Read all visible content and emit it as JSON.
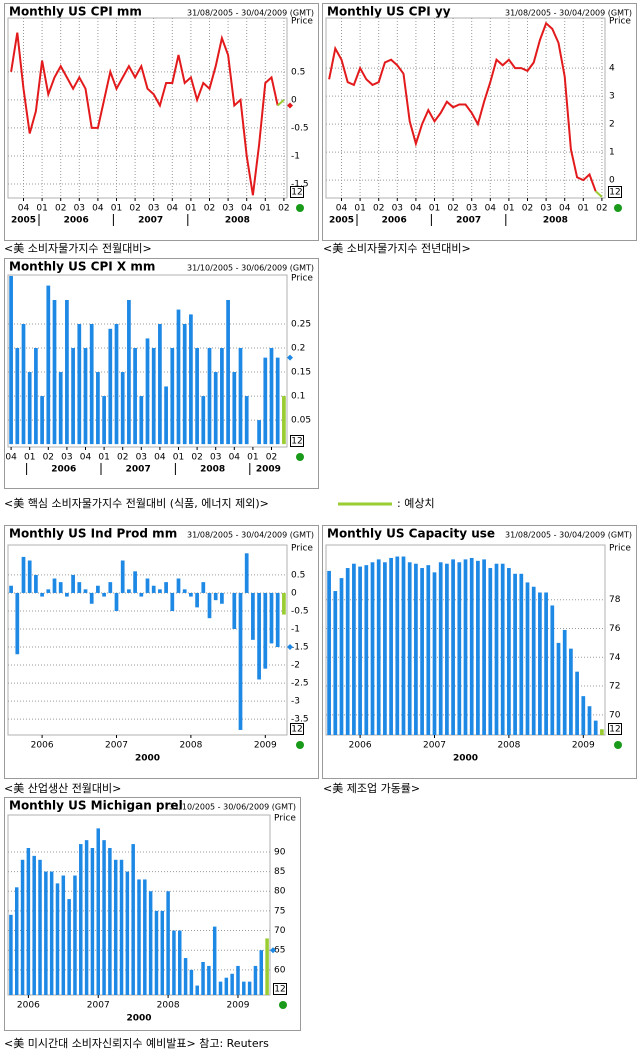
{
  "chart_data": [
    {
      "type": "line",
      "title": "Monthly US CPI mm",
      "date_range": "31/08/2005 - 30/04/2009 (GMT)",
      "caption": "<美 소비자물가지수 전월대비>",
      "axis_title": "Price",
      "box_label": "12",
      "categories": [
        null,
        null,
        "04",
        null,
        null,
        "01",
        null,
        null,
        "02",
        null,
        null,
        "03",
        null,
        null,
        "04",
        null,
        null,
        "01",
        null,
        null,
        "02",
        null,
        null,
        "03",
        null,
        null,
        "04",
        null,
        null,
        "01",
        null,
        null,
        "02",
        null,
        null,
        "03",
        null,
        null,
        "04",
        null,
        null,
        "01",
        null,
        null,
        "02"
      ],
      "years": [
        "2005",
        null,
        null,
        null,
        null,
        "2006",
        null,
        null,
        null,
        null,
        null,
        null,
        null,
        null,
        null,
        null,
        null,
        "2007",
        null,
        null,
        null,
        null,
        null,
        null,
        null,
        null,
        null,
        null,
        null,
        "2008",
        null,
        null,
        null,
        null,
        null,
        null,
        null,
        null,
        null,
        null,
        null,
        null,
        null,
        null,
        null
      ],
      "values": [
        0.5,
        1.2,
        0.2,
        -0.6,
        -0.2,
        0.7,
        0.1,
        0.4,
        0.6,
        0.4,
        0.2,
        0.4,
        0.2,
        -0.5,
        -0.5,
        0,
        0.5,
        0.2,
        0.4,
        0.6,
        0.4,
        0.6,
        0.2,
        0.1,
        -0.1,
        0.3,
        0.3,
        0.8,
        0.3,
        0.4,
        0,
        0.3,
        0.2,
        0.6,
        1.1,
        0.8,
        -0.1,
        0,
        -1.0,
        -1.7,
        -0.8,
        0.3,
        0.4,
        -0.1,
        null
      ],
      "forecast": 0,
      "color": "#e31a1c",
      "forecast_color": "#9acd32",
      "marker": true,
      "ylim": [
        -1.75,
        1.46
      ],
      "yticks": [
        0.5,
        0,
        -0.5,
        -1,
        -1.5
      ],
      "grid": true,
      "xgrid": true
    },
    {
      "type": "line",
      "title": "Monthly US CPI yy",
      "date_range": "31/08/2005 - 30/04/2009 (GMT)",
      "caption": "<美 소비자물가지수 전년대비>",
      "axis_title": "Price",
      "box_label": "12",
      "categories": [
        null,
        null,
        "04",
        null,
        null,
        "01",
        null,
        null,
        "02",
        null,
        null,
        "03",
        null,
        null,
        "04",
        null,
        null,
        "01",
        null,
        null,
        "02",
        null,
        null,
        "03",
        null,
        null,
        "04",
        null,
        null,
        "01",
        null,
        null,
        "02",
        null,
        null,
        "03",
        null,
        null,
        "04",
        null,
        null,
        "01",
        null,
        null,
        "02"
      ],
      "years": [
        "2005",
        null,
        null,
        null,
        null,
        "2006",
        null,
        null,
        null,
        null,
        null,
        null,
        null,
        null,
        null,
        null,
        null,
        "2007",
        null,
        null,
        null,
        null,
        null,
        null,
        null,
        null,
        null,
        null,
        null,
        "2008",
        null,
        null,
        null,
        null,
        null,
        null,
        null,
        null,
        null,
        null,
        null,
        null,
        null,
        null,
        null
      ],
      "values": [
        3.6,
        4.7,
        4.3,
        3.5,
        3.4,
        4.0,
        3.6,
        3.4,
        3.5,
        4.2,
        4.3,
        4.1,
        3.8,
        2.1,
        1.3,
        2.0,
        2.5,
        2.1,
        2.4,
        2.8,
        2.6,
        2.7,
        2.7,
        2.4,
        2.0,
        2.8,
        3.5,
        4.3,
        4.1,
        4.3,
        4.0,
        4.0,
        3.9,
        4.2,
        5.0,
        5.6,
        5.4,
        4.9,
        3.7,
        1.1,
        0.1,
        0,
        0.2,
        -0.4,
        null
      ],
      "forecast": -0.6,
      "color": "#e31a1c",
      "forecast_color": "#9acd32",
      "marker": false,
      "ylim": [
        -0.64,
        5.79
      ],
      "yticks": [
        4,
        3,
        2,
        1,
        0
      ],
      "grid": true,
      "xgrid": true
    },
    {
      "type": "bar",
      "title": "Monthly US CPI X mm",
      "date_range": "31/10/2005 - 30/06/2009 (GMT)",
      "caption": "<美 핵심 소비자물가지수 전월대비 (식품, 에너지 제외)>",
      "legend_label": ": 예상치",
      "axis_title": "Price",
      "box_label": "12",
      "categories": [
        "04",
        null,
        null,
        "01",
        null,
        null,
        "02",
        null,
        null,
        "03",
        null,
        null,
        "04",
        null,
        null,
        "01",
        null,
        null,
        "02",
        null,
        null,
        "03",
        null,
        null,
        "04",
        null,
        null,
        "01",
        null,
        null,
        "02",
        null,
        null,
        "03",
        null,
        null,
        "04",
        null,
        null,
        "01",
        null,
        null,
        "02",
        null,
        null
      ],
      "years": [
        null,
        null,
        null,
        "2006",
        null,
        null,
        null,
        null,
        null,
        null,
        null,
        null,
        null,
        null,
        null,
        "2007",
        null,
        null,
        null,
        null,
        null,
        null,
        null,
        null,
        null,
        null,
        null,
        "2008",
        null,
        null,
        null,
        null,
        null,
        null,
        null,
        null,
        null,
        null,
        null,
        "2009",
        null,
        null,
        null,
        null,
        null
      ],
      "values": [
        0.35,
        0.2,
        0.25,
        0.15,
        0.2,
        0.1,
        0.33,
        0.3,
        0.15,
        0.3,
        0.2,
        0.25,
        0.2,
        0.25,
        0.15,
        0.1,
        0.24,
        0.25,
        0.15,
        0.3,
        0.2,
        0.1,
        0.22,
        0.2,
        0.25,
        0.12,
        0.2,
        0.28,
        0.25,
        0.27,
        0.2,
        0.1,
        0.2,
        0.15,
        0.2,
        0.3,
        0.15,
        0.2,
        0.1,
        0,
        0.05,
        0.18,
        0.2,
        0.18,
        null
      ],
      "forecast": 0.1,
      "color": "#1e88e5",
      "forecast_color": "#9acd32",
      "marker": true,
      "ylim": [
        -0.006,
        0.352
      ],
      "yticks": [
        0.25,
        0.2,
        0.15,
        0.1,
        0.05
      ],
      "grid": true,
      "xgrid": false
    },
    {
      "type": "bar",
      "title": "Monthly US Ind Prod mm",
      "date_range": "31/08/2005 - 30/04/2009 (GMT)",
      "caption": "<美 산업생산 전월대비>",
      "axis_title": "Price",
      "box_label": "12",
      "xlabel": "2000",
      "categories": [
        null,
        null,
        null,
        null,
        null,
        "2006",
        null,
        null,
        null,
        null,
        null,
        null,
        null,
        null,
        null,
        null,
        null,
        "2007",
        null,
        null,
        null,
        null,
        null,
        null,
        null,
        null,
        null,
        null,
        null,
        "2008",
        null,
        null,
        null,
        null,
        null,
        null,
        null,
        null,
        null,
        null,
        null,
        "2009",
        null,
        null,
        null
      ],
      "values": [
        0.2,
        -1.7,
        1.0,
        0.9,
        0.5,
        -0.1,
        0.1,
        0.4,
        0.3,
        -0.1,
        0.5,
        0.3,
        0.1,
        -0.3,
        0.2,
        -0.1,
        0.3,
        -0.5,
        0.9,
        0.1,
        0.6,
        -0.1,
        0.4,
        0.2,
        0.1,
        0.3,
        -0.5,
        0.4,
        0.1,
        -0.1,
        -0.4,
        0.3,
        -0.7,
        -0.2,
        -0.3,
        0,
        -1.0,
        -3.8,
        1.1,
        -1.3,
        -2.4,
        -2.1,
        -1.4,
        -1.5,
        null
      ],
      "forecast": -0.6,
      "color": "#1e88e5",
      "forecast_color": "#9acd32",
      "marker": true,
      "ylim": [
        -3.94,
        1.33
      ],
      "yticks": [
        0.5,
        0,
        -0.5,
        -1,
        -1.5,
        -2,
        -2.5,
        -3,
        -3.5
      ],
      "grid": true,
      "xgrid": false
    },
    {
      "type": "bar",
      "title": "Monthly US Capacity use",
      "date_range": "31/08/2005 - 30/04/2009 (GMT)",
      "caption": "<美 제조업 가동률>",
      "axis_title": "Price",
      "box_label": "12",
      "xlabel": "2000",
      "categories": [
        null,
        null,
        null,
        null,
        null,
        "2006",
        null,
        null,
        null,
        null,
        null,
        null,
        null,
        null,
        null,
        null,
        null,
        "2007",
        null,
        null,
        null,
        null,
        null,
        null,
        null,
        null,
        null,
        null,
        null,
        "2008",
        null,
        null,
        null,
        null,
        null,
        null,
        null,
        null,
        null,
        null,
        null,
        "2009",
        null,
        null,
        null
      ],
      "values": [
        80.0,
        78.6,
        79.5,
        80.2,
        80.5,
        80.3,
        80.4,
        80.6,
        80.8,
        80.6,
        80.9,
        81.0,
        81.0,
        80.6,
        80.5,
        80.2,
        80.4,
        79.9,
        80.6,
        80.5,
        80.8,
        80.6,
        80.8,
        80.9,
        80.7,
        80.8,
        80.2,
        80.5,
        80.5,
        80.2,
        79.8,
        79.8,
        79.2,
        78.9,
        78.5,
        78.5,
        77.6,
        75.0,
        75.9,
        74.6,
        73.0,
        71.3,
        70.6,
        69.6,
        null
      ],
      "forecast": 69.0,
      "color": "#1e88e5",
      "forecast_color": "#9acd32",
      "marker": false,
      "ylim": [
        68.6,
        81.8
      ],
      "yticks": [
        78,
        76,
        74,
        72,
        70
      ],
      "grid": true,
      "xgrid": false
    },
    {
      "type": "bar",
      "title": "Monthly US Michigan prel",
      "date_range": "31/10/2005 - 30/06/2009 (GMT)",
      "caption": "<美 미시간대 소비자신뢰지수 예비발표> 참고: Reuters",
      "axis_title": "Price",
      "box_label": "12",
      "xlabel": "2000",
      "categories": [
        null,
        null,
        null,
        "2006",
        null,
        null,
        null,
        null,
        null,
        null,
        null,
        null,
        null,
        null,
        null,
        "2007",
        null,
        null,
        null,
        null,
        null,
        null,
        null,
        null,
        null,
        null,
        null,
        "2008",
        null,
        null,
        null,
        null,
        null,
        null,
        null,
        null,
        null,
        null,
        null,
        "2009",
        null,
        null,
        null,
        null,
        null
      ],
      "values": [
        74,
        81,
        88,
        91,
        89,
        88,
        85,
        85,
        82,
        84,
        78,
        84,
        92,
        93,
        91,
        96,
        93,
        91,
        88,
        88,
        85,
        92,
        83,
        83,
        80,
        75,
        75,
        80,
        70,
        70,
        63,
        60,
        56,
        62,
        61,
        71,
        57,
        58,
        59,
        61,
        57,
        57,
        61,
        65,
        null
      ],
      "forecast": 68,
      "color": "#1e88e5",
      "forecast_color": "#9acd32",
      "marker": true,
      "ylim": [
        53.6,
        99.4
      ],
      "yticks": [
        90,
        85,
        80,
        75,
        70,
        65,
        60
      ],
      "grid": true,
      "xgrid": false
    }
  ]
}
